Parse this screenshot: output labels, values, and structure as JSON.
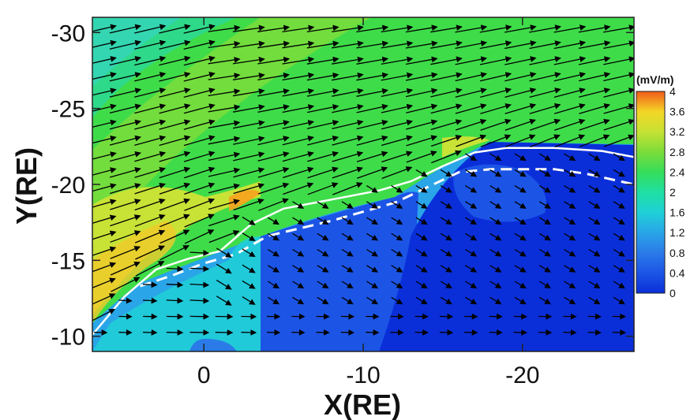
{
  "chart_data": {
    "type": "heatmap",
    "title": "",
    "xlabel": "X(RE)",
    "ylabel": "Y(RE)",
    "xlim": [
      7,
      -27
    ],
    "ylim": [
      -9,
      -31
    ],
    "x_ticks": [
      "0",
      "-10",
      "-20"
    ],
    "x_tick_values": [
      0,
      -10,
      -20
    ],
    "y_ticks": [
      "-30",
      "-25",
      "-20",
      "-15",
      "-10"
    ],
    "y_tick_values": [
      -30,
      -25,
      -20,
      -15,
      -10
    ],
    "colorbar": {
      "title": "(mV/m)",
      "labels": [
        "4",
        "3.6",
        "3.2",
        "2.8",
        "2.4",
        "2",
        "1.6",
        "1.2",
        "0.8",
        "0.4",
        "0"
      ],
      "levels": [
        0,
        0.4,
        0.8,
        1.2,
        1.6,
        2,
        2.4,
        2.8,
        3.2,
        3.6,
        4
      ],
      "colors": [
        "#0a2fd9",
        "#1c55e6",
        "#2a7be8",
        "#29a5e8",
        "#1fd0d6",
        "#1fe0a3",
        "#35dd5a",
        "#7cdc3a",
        "#c5e234",
        "#f4d626",
        "#f7a21e",
        "#f05a1b"
      ]
    },
    "series": [
      {
        "name": "",
        "style": "solid-white",
        "x": [
          7,
          5,
          3,
          1,
          -1,
          -3,
          -5,
          -8,
          -11,
          -13,
          -15,
          -17,
          -19,
          -22,
          -25,
          -27
        ],
        "y": [
          -10.1,
          -12.6,
          -14.4,
          -15.1,
          -15.6,
          -17.4,
          -18.4,
          -19,
          -19.6,
          -20.2,
          -21.2,
          -22.1,
          -22.4,
          -22.4,
          -22.2,
          -21.8
        ]
      },
      {
        "name": "",
        "style": "dashed-white",
        "x": [
          4,
          2,
          0,
          -2,
          -4,
          -6,
          -8,
          -10,
          -12,
          -14,
          -16,
          -18,
          -20,
          -22,
          -24,
          -27
        ],
        "y": [
          -13.3,
          -14,
          -14.8,
          -15.4,
          -16.6,
          -17.1,
          -17.6,
          -18.2,
          -18.8,
          -19.8,
          -20.8,
          -21,
          -21,
          -21,
          -20.7,
          -20
        ]
      }
    ],
    "vector_field": "flow arrows, tailward (pointing to negative X) in the magnetosheath, short arrows pointing to positive Y inside the boundary"
  },
  "colors": {
    "accent": "#0a2fd9"
  }
}
